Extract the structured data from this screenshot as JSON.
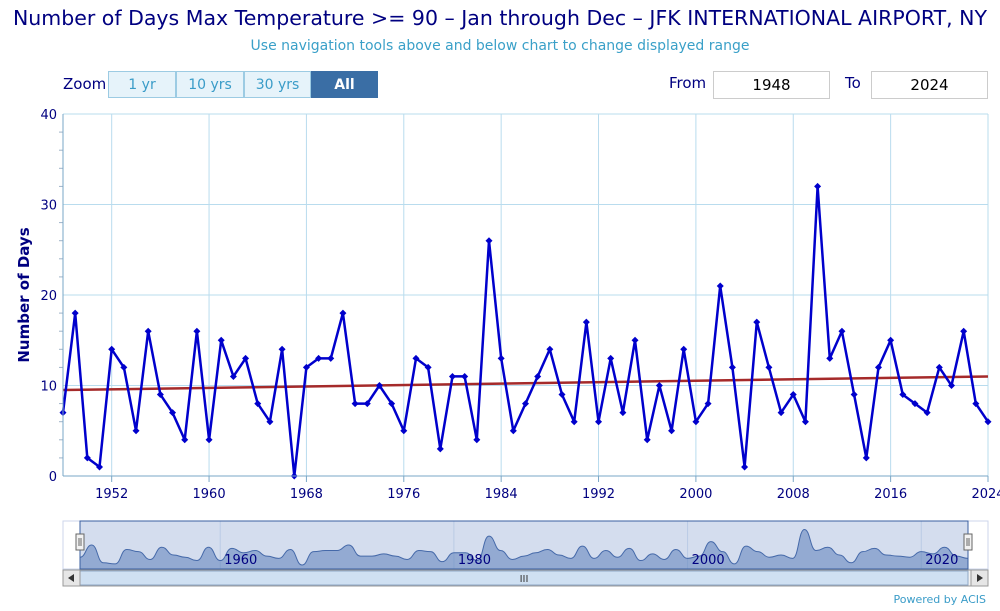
{
  "header": {
    "title": "Number of Days Max Temperature >= 90 – Jan through Dec – JFK INTERNATIONAL AIRPORT, NY",
    "subtitle": "Use navigation tools above and below chart to change displayed range"
  },
  "controls": {
    "zoom_label": "Zoom",
    "zoom_buttons": [
      {
        "label": "1 yr",
        "active": false
      },
      {
        "label": "10 yrs",
        "active": false
      },
      {
        "label": "30 yrs",
        "active": false
      },
      {
        "label": "All",
        "active": true
      }
    ],
    "from_label": "From",
    "from_value": "1948",
    "to_label": "To",
    "to_value": "2024"
  },
  "chart_data": {
    "type": "line",
    "ylabel": "Number of Days",
    "xlabel": "",
    "ylim": [
      0,
      40
    ],
    "xlim": [
      1948,
      2024
    ],
    "y_ticks": [
      0,
      10,
      20,
      30,
      40
    ],
    "x_ticks": [
      1952,
      1960,
      1968,
      1976,
      1984,
      1992,
      2000,
      2008,
      2016,
      2024
    ],
    "grid": true,
    "series": [
      {
        "color": "#0000cc",
        "x": [
          1948,
          1949,
          1950,
          1951,
          1952,
          1953,
          1954,
          1955,
          1956,
          1957,
          1958,
          1959,
          1960,
          1961,
          1962,
          1963,
          1964,
          1965,
          1966,
          1967,
          1968,
          1969,
          1970,
          1971,
          1972,
          1973,
          1974,
          1975,
          1976,
          1977,
          1978,
          1979,
          1980,
          1981,
          1982,
          1983,
          1984,
          1985,
          1986,
          1987,
          1988,
          1989,
          1990,
          1991,
          1992,
          1993,
          1994,
          1995,
          1996,
          1997,
          1998,
          1999,
          2000,
          2001,
          2002,
          2003,
          2004,
          2005,
          2006,
          2007,
          2008,
          2009,
          2010,
          2011,
          2012,
          2013,
          2014,
          2015,
          2016,
          2017,
          2018,
          2019,
          2020,
          2021,
          2022,
          2023,
          2024
        ],
        "values": [
          7,
          18,
          2,
          1,
          14,
          12,
          5,
          16,
          9,
          7,
          4,
          16,
          4,
          15,
          11,
          13,
          8,
          6,
          14,
          0,
          12,
          13,
          13,
          18,
          8,
          8,
          10,
          8,
          5,
          13,
          12,
          3,
          11,
          11,
          4,
          26,
          13,
          5,
          8,
          11,
          14,
          9,
          6,
          17,
          6,
          13,
          7,
          15,
          4,
          10,
          5,
          14,
          6,
          8,
          21,
          12,
          1,
          17,
          12,
          7,
          9,
          6,
          32,
          13,
          16,
          9,
          2,
          12,
          15,
          9,
          8,
          7,
          12,
          10,
          16,
          8,
          6
        ]
      },
      {
        "color": "#a52a2a",
        "x": [
          1948,
          2024
        ],
        "values": [
          9.5,
          11.0
        ]
      }
    ]
  },
  "navigator": {
    "tick_labels": [
      "1960",
      "1980",
      "2000",
      "2020"
    ],
    "tick_years": [
      1960,
      1980,
      2000,
      2020
    ],
    "scroll_grip": "III"
  },
  "footer": {
    "credit": "Powered by ACIS"
  }
}
